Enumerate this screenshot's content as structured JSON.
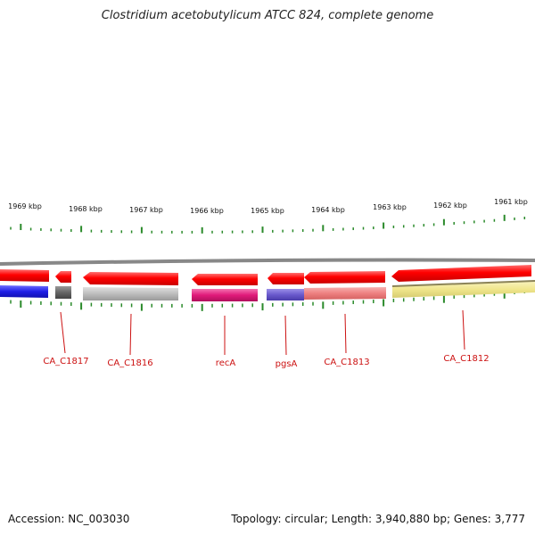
{
  "title": "Clostridium acetobutylicum ATCC 824, complete genome",
  "accession_text": "Accession: NC_003030",
  "summary_text": "Topology: circular; Length: 3,940,880 bp; Genes: 3,777",
  "colors": {
    "backbone": "#888888",
    "tick": "#2a8a2a",
    "label": "#cc1111",
    "gene_red": "#ff0000",
    "blue": "#1e1ee6",
    "dark_gray": "#666666",
    "light_gray": "#bdbdbd",
    "magenta": "#e01a7a",
    "purple": "#6a5acd",
    "salmon": "#ee8080",
    "khaki": "#f0e68c"
  },
  "kbp_labels": [
    "1969 kbp",
    "1968 kbp",
    "1967 kbp",
    "1966 kbp",
    "1965 kbp",
    "1964 kbp",
    "1963 kbp",
    "1962 kbp",
    "1961 kbp"
  ],
  "gene_labels": [
    "CA_C1817",
    "CA_C1816",
    "recA",
    "pgsA",
    "CA_C1813",
    "CA_C1812"
  ]
}
